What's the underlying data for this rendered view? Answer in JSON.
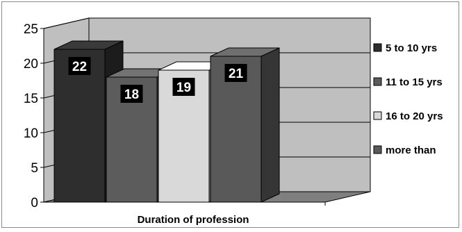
{
  "chart_data": {
    "type": "bar",
    "style": "3d-clustered",
    "title": "",
    "xlabel": "Duration of profession",
    "ylabel": "",
    "ylim": [
      0,
      25
    ],
    "yticks": [
      0,
      5,
      10,
      15,
      20,
      25
    ],
    "grid": true,
    "legend": "right",
    "series": [
      {
        "name": "5 to 10 yrs",
        "value": 22,
        "color": "#2e2e2e"
      },
      {
        "name": "11 to 15 yrs",
        "value": 18,
        "color": "#5c5c5c"
      },
      {
        "name": "16 to 20 yrs",
        "value": 19,
        "color": "#d9d9d9"
      },
      {
        "name": "more than",
        "value": 21,
        "color": "#595959"
      }
    ],
    "colors": {
      "wall": "#bfbfbf",
      "floor": "#7f7f7f",
      "label_box": "#000000"
    }
  }
}
